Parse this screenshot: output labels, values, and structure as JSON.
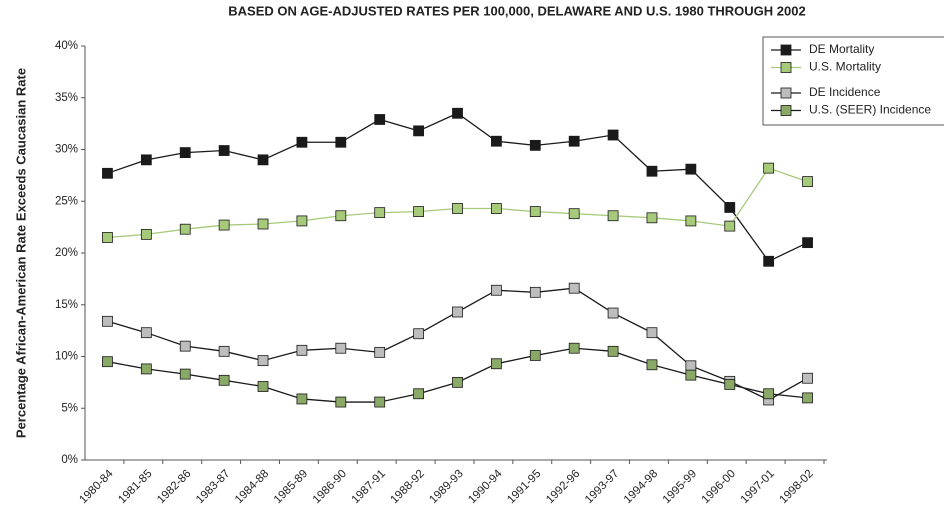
{
  "chart_data": {
    "type": "line",
    "title": "BASED ON AGE-ADJUSTED RATES PER 100,000, DELAWARE AND U.S. 1980 THROUGH 2002",
    "y_label": "Percentage African-American Rate Exceeds Caucasian Rate",
    "categories": [
      "1980-84",
      "1981-85",
      "1982-86",
      "1983-87",
      "1984-88",
      "1985-89",
      "1986-90",
      "1987-91",
      "1988-92",
      "1989-93",
      "1990-94",
      "1991-95",
      "1992-96",
      "1993-97",
      "1994-98",
      "1995-99",
      "1996-00",
      "1997-01",
      "1998-02"
    ],
    "ylim": [
      0,
      40
    ],
    "yticks": [
      {
        "value": 0,
        "label": "0%"
      },
      {
        "value": 5,
        "label": "5%"
      },
      {
        "value": 10,
        "label": "10%"
      },
      {
        "value": 15,
        "label": "15%"
      },
      {
        "value": 20,
        "label": "20%"
      },
      {
        "value": 25,
        "label": "25%"
      },
      {
        "value": 30,
        "label": "30%"
      },
      {
        "value": 35,
        "label": "35%"
      },
      {
        "value": 40,
        "label": "40%"
      }
    ],
    "legend": "top-right",
    "series": [
      {
        "name": "DE Mortality",
        "color": "#1a1a1a",
        "line_color": "#1a1a1a",
        "values": [
          27.7,
          29.0,
          29.7,
          29.9,
          29.0,
          30.7,
          30.7,
          32.9,
          31.8,
          33.5,
          30.8,
          30.4,
          30.8,
          31.4,
          27.9,
          28.1,
          24.4,
          19.2,
          21.0
        ]
      },
      {
        "name": "U.S. Mortality",
        "color": "#a6c97a",
        "line_color": "#a6c97a",
        "values": [
          21.5,
          21.8,
          22.3,
          22.7,
          22.8,
          23.1,
          23.6,
          23.9,
          24.0,
          24.3,
          24.3,
          24.0,
          23.8,
          23.6,
          23.4,
          23.1,
          22.6,
          28.2,
          26.9
        ]
      },
      {
        "name": "DE Incidence",
        "color": "#bdbdbd",
        "line_color": "#1a1a1a",
        "values": [
          13.4,
          12.3,
          11.0,
          10.5,
          9.6,
          10.6,
          10.8,
          10.4,
          12.2,
          14.3,
          16.4,
          16.2,
          16.6,
          14.2,
          12.3,
          9.1,
          7.6,
          5.8,
          7.9
        ]
      },
      {
        "name": "U.S. (SEER) Incidence",
        "color": "#8aa866",
        "line_color": "#1a1a1a",
        "values": [
          9.5,
          8.8,
          8.3,
          7.7,
          7.1,
          5.9,
          5.6,
          5.6,
          6.4,
          7.5,
          9.3,
          10.1,
          10.8,
          10.5,
          9.2,
          8.2,
          7.3,
          6.4,
          6.0
        ]
      }
    ]
  }
}
